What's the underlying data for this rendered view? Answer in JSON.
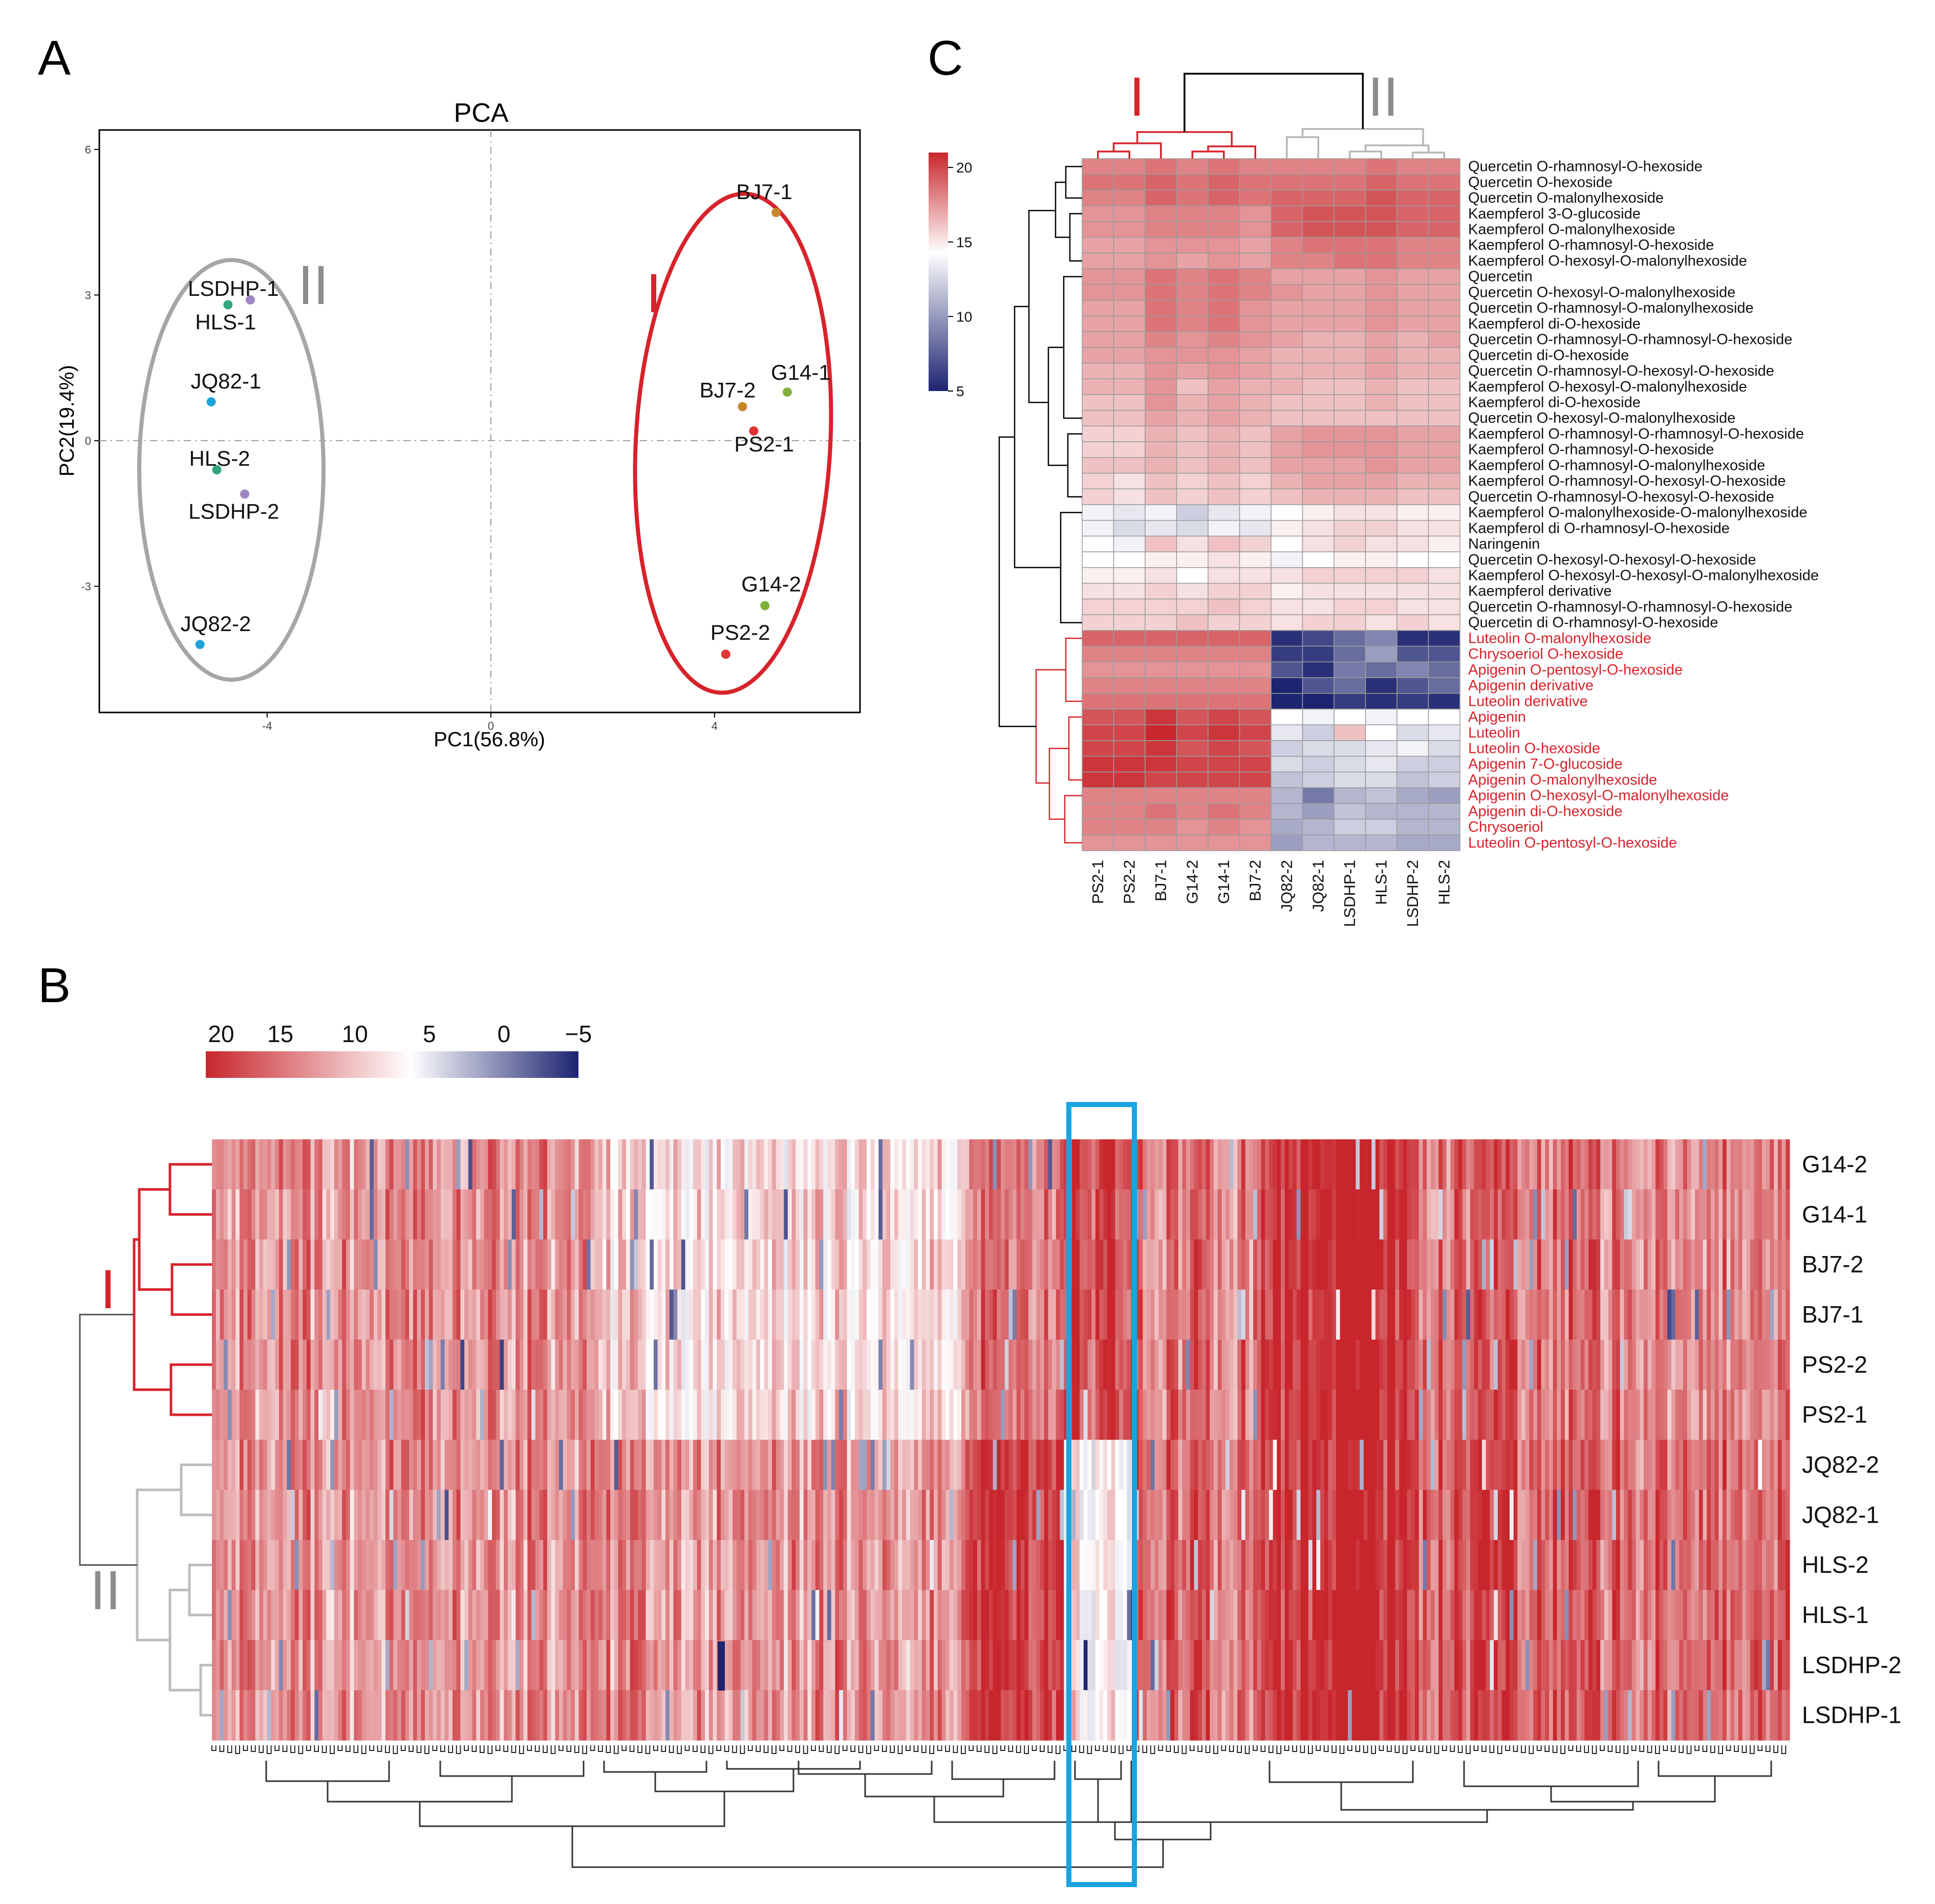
{
  "panels": {
    "A": "A",
    "B": "B",
    "C": "C"
  },
  "colors": {
    "high": "#c8262c",
    "mid": "#ffffff",
    "low": "#1d2470",
    "group1": "#d7232b",
    "group2": "#a6a6a6",
    "highlight": "#1ba3e0",
    "sample_colors": {
      "BJ7": "#c8862a",
      "G14": "#7fb13a",
      "PS2": "#e13234",
      "LSDHP": "#9d86c2",
      "HLS": "#2fa77b",
      "JQ82": "#1fa4d9"
    }
  },
  "chart_data": [
    {
      "id": "pca",
      "type": "scatter",
      "title": "PCA",
      "xlabel": "PC1(56.8%)",
      "ylabel": "PC2(19.4%)",
      "xlim": [
        -7.0,
        6.6
      ],
      "ylim": [
        -5.6,
        6.4
      ],
      "xticks": [
        -4,
        0,
        4
      ],
      "xtick_labels": [
        "-4",
        "0",
        "4"
      ],
      "yticks": [
        -3,
        0,
        3,
        6
      ],
      "ytick_labels": [
        "-3",
        "0",
        "3",
        "6"
      ],
      "points": [
        {
          "label": "BJ7-1",
          "group": "BJ7",
          "x": 5.1,
          "y": 4.7
        },
        {
          "label": "BJ7-2",
          "group": "BJ7",
          "x": 4.5,
          "y": 0.7
        },
        {
          "label": "G14-1",
          "group": "G14",
          "x": 5.3,
          "y": 1.0
        },
        {
          "label": "PS2-1",
          "group": "PS2",
          "x": 4.7,
          "y": 0.2
        },
        {
          "label": "G14-2",
          "group": "G14",
          "x": 4.9,
          "y": -3.4
        },
        {
          "label": "PS2-2",
          "group": "PS2",
          "x": 4.2,
          "y": -4.4
        },
        {
          "label": "LSDHP-1",
          "group": "LSDHP",
          "x": -4.3,
          "y": 2.9
        },
        {
          "label": "HLS-1",
          "group": "HLS",
          "x": -4.7,
          "y": 2.8
        },
        {
          "label": "JQ82-1",
          "group": "JQ82",
          "x": -5.0,
          "y": 0.8
        },
        {
          "label": "HLS-2",
          "group": "HLS",
          "x": -4.9,
          "y": -0.6
        },
        {
          "label": "LSDHP-2",
          "group": "LSDHP",
          "x": -4.4,
          "y": -1.1
        },
        {
          "label": "JQ82-2",
          "group": "JQ82",
          "x": -5.2,
          "y": -4.2
        }
      ],
      "group_labels": [
        "I",
        "II"
      ]
    },
    {
      "id": "heatmap-b",
      "type": "heatmap",
      "scale_ticks": [
        20,
        15,
        10,
        5,
        0,
        -5
      ],
      "scale_tick_labels": [
        "20",
        "15",
        "10",
        "5",
        "0",
        "−5"
      ],
      "scale_range": [
        -5,
        20
      ],
      "rows": [
        "G14-2",
        "G14-1",
        "BJ7-2",
        "BJ7-1",
        "PS2-2",
        "PS2-1",
        "JQ82-2",
        "JQ82-1",
        "HLS-2",
        "HLS-1",
        "LSDHP-2",
        "LSDHP-1"
      ],
      "group_labels": [
        "I",
        "II"
      ],
      "n_columns": 400,
      "segments": [
        {
          "from": 0,
          "to": 0.24,
          "group1": 15.5,
          "group2": 15.5
        },
        {
          "from": 0.24,
          "to": 0.48,
          "group1": 12.5,
          "group2": 15.5
        },
        {
          "from": 0.48,
          "to": 0.54,
          "group1": 16.5,
          "group2": 19
        },
        {
          "from": 0.54,
          "to": 0.585,
          "group1": 19,
          "group2": 11.5
        },
        {
          "from": 0.585,
          "to": 0.665,
          "group1": 16.5,
          "group2": 17
        },
        {
          "from": 0.665,
          "to": 0.76,
          "group1": 20,
          "group2": 20
        },
        {
          "from": 0.76,
          "to": 1.0,
          "group1": 16.5,
          "group2": 17.5
        }
      ]
    },
    {
      "id": "heatmap-c",
      "type": "heatmap",
      "scale_ticks": [
        20,
        15,
        10,
        5
      ],
      "scale_tick_labels": [
        "20",
        "15",
        "10",
        "5"
      ],
      "scale_range": [
        5,
        21
      ],
      "group_labels": [
        "I",
        "II"
      ],
      "columns": [
        "PS2-1",
        "PS2-2",
        "BJ7-1",
        "G14-2",
        "G14-1",
        "BJ7-2",
        "JQ82-2",
        "JQ82-1",
        "LSDHP-1",
        "HLS-1",
        "LSDHP-2",
        "HLS-2"
      ],
      "rows": [
        {
          "name": "Quercetin O-rhamnosyl-O-hexoside",
          "red": false,
          "values": [
            18,
            18,
            18.5,
            18,
            18.5,
            18,
            18,
            18,
            18,
            18.5,
            18,
            18
          ]
        },
        {
          "name": "Quercetin O-hexoside",
          "red": false,
          "values": [
            18.5,
            18.5,
            19,
            18.5,
            19,
            18.5,
            18.5,
            18.5,
            18.5,
            19,
            18.5,
            18.5
          ]
        },
        {
          "name": "Quercetin O-malonylhexoside",
          "red": false,
          "values": [
            18,
            18,
            19,
            18.5,
            19,
            18.5,
            19,
            19,
            19,
            19.5,
            19,
            19
          ]
        },
        {
          "name": "Kaempferol 3-O-glucoside",
          "red": false,
          "values": [
            17.5,
            17.5,
            18,
            18,
            18,
            17.5,
            19,
            19.5,
            19.5,
            19.5,
            19,
            19
          ]
        },
        {
          "name": "Kaempferol O-malonylhexoside",
          "red": false,
          "values": [
            17.5,
            17.5,
            18,
            18,
            18,
            17.5,
            19,
            19.5,
            19.5,
            19.5,
            19,
            19
          ]
        },
        {
          "name": "Kaempferol O-rhamnosyl-O-hexoside",
          "red": false,
          "values": [
            17,
            17,
            17.5,
            17.5,
            17.5,
            17,
            18,
            18.5,
            18.5,
            18.5,
            18,
            18
          ]
        },
        {
          "name": "Kaempferol O-hexosyl-O-malonylhexoside",
          "red": false,
          "values": [
            17,
            17,
            17.5,
            17,
            17.5,
            17,
            18,
            18,
            18.5,
            18.5,
            18,
            18
          ]
        },
        {
          "name": "Quercetin",
          "red": false,
          "values": [
            17.5,
            17.5,
            18.5,
            18,
            18.5,
            18,
            17,
            17,
            17,
            17.5,
            17,
            17
          ]
        },
        {
          "name": "Quercetin O-hexosyl-O-malonylhexoside",
          "red": false,
          "values": [
            17.5,
            17.5,
            18.5,
            18,
            18.5,
            18,
            17.5,
            17,
            17,
            17.5,
            17,
            17
          ]
        },
        {
          "name": "Quercetin O-rhamnosyl-O-malonylhexoside",
          "red": false,
          "values": [
            17,
            17,
            18.5,
            18,
            18.5,
            17.5,
            17,
            17,
            17,
            17.5,
            17,
            17
          ]
        },
        {
          "name": "Kaempferol di-O-hexoside",
          "red": false,
          "values": [
            17,
            17,
            18.5,
            18,
            18.5,
            17.5,
            17,
            17,
            17,
            17.5,
            17,
            17
          ]
        },
        {
          "name": "Quercetin O-rhamnosyl-O-rhamnosyl-O-hexoside",
          "red": false,
          "values": [
            17,
            17,
            18,
            17.5,
            18,
            17.5,
            17,
            16.5,
            16.5,
            17,
            16.5,
            17
          ]
        },
        {
          "name": "Quercetin di-O-hexoside",
          "red": false,
          "values": [
            17,
            17,
            17.5,
            17.5,
            17.5,
            17,
            16.5,
            16.5,
            16.5,
            17,
            16.5,
            16.5
          ]
        },
        {
          "name": "Quercetin O-rhamnosyl-O-hexosyl-O-hexoside",
          "red": false,
          "values": [
            16.5,
            16.5,
            17.5,
            17,
            17.5,
            17,
            16.5,
            16.5,
            16.5,
            17,
            16.5,
            16.5
          ]
        },
        {
          "name": "Kaempferol O-hexosyl-O-malonylhexoside",
          "red": false,
          "values": [
            16.5,
            16.5,
            17.5,
            16,
            17,
            16.5,
            16.5,
            16,
            16,
            16.5,
            16,
            16
          ]
        },
        {
          "name": "Kaempferol di-O-hexoside",
          "red": false,
          "values": [
            16,
            16,
            17.5,
            16.5,
            17,
            16.5,
            16,
            16,
            16,
            16.5,
            16,
            16
          ]
        },
        {
          "name": "Quercetin O-hexosyl-O-malonylhexoside",
          "red": false,
          "values": [
            16,
            16,
            17,
            16.5,
            17,
            16.5,
            16,
            16,
            16,
            16,
            16,
            16
          ]
        },
        {
          "name": "Kaempferol O-rhamnosyl-O-rhamnosyl-O-hexoside",
          "red": false,
          "values": [
            15.5,
            15.5,
            16.5,
            16,
            16.5,
            16,
            17,
            17.5,
            17.5,
            17.5,
            17,
            17
          ]
        },
        {
          "name": "Kaempferol O-rhamnosyl-O-hexoside",
          "red": false,
          "values": [
            15.5,
            15.5,
            16.5,
            16,
            16.5,
            16,
            17,
            17.5,
            17.5,
            17.5,
            17,
            17
          ]
        },
        {
          "name": "Kaempferol O-rhamnosyl-O-malonylhexoside",
          "red": false,
          "values": [
            16,
            16,
            16.5,
            16,
            16.5,
            16,
            17,
            17,
            17,
            17.5,
            17,
            17
          ]
        },
        {
          "name": "Kaempferol O-rhamnosyl-O-hexosyl-O-hexoside",
          "red": false,
          "values": [
            15.5,
            15,
            16,
            15.5,
            16,
            15.5,
            16.5,
            17,
            17,
            17,
            16.5,
            16.5
          ]
        },
        {
          "name": "Quercetin O-rhamnosyl-O-hexosyl-O-hexoside",
          "red": false,
          "values": [
            15.5,
            15,
            16,
            15.5,
            16,
            15.5,
            16,
            16.5,
            16.5,
            16.5,
            16,
            16
          ]
        },
        {
          "name": "Kaempferol O-malonylhexoside-O-malonylhexoside",
          "red": false,
          "values": [
            13.5,
            13,
            13.5,
            12,
            13,
            13.5,
            14,
            14.5,
            15,
            15,
            14.5,
            14.5
          ]
        },
        {
          "name": "Kaempferol di O-rhamnosyl-O-hexoside",
          "red": false,
          "values": [
            13.5,
            12.5,
            13,
            12.5,
            13.5,
            13,
            14.5,
            15,
            15.5,
            15.5,
            15,
            15
          ]
        },
        {
          "name": "Naringenin",
          "red": false,
          "values": [
            14,
            13.5,
            16,
            15,
            16,
            15.5,
            14,
            15,
            15.5,
            15,
            15,
            14.5
          ]
        },
        {
          "name": "Quercetin O-hexosyl-O-hexosyl-O-hexoside",
          "red": false,
          "values": [
            14,
            14,
            14.5,
            14.5,
            15,
            14.5,
            13.5,
            14,
            14.5,
            14.5,
            14,
            14
          ]
        },
        {
          "name": "Kaempferol O-hexosyl-O-hexosyl-O-malonylhexoside",
          "red": false,
          "values": [
            14.5,
            14.5,
            15,
            14,
            15,
            15,
            15,
            15.5,
            15.5,
            15.5,
            15.5,
            15
          ]
        },
        {
          "name": "Kaempferol derivative",
          "red": false,
          "values": [
            15,
            15,
            15.5,
            15,
            15.5,
            15.5,
            14.5,
            15,
            15,
            15,
            15,
            15
          ]
        },
        {
          "name": "Quercetin O-rhamnosyl-O-rhamnosyl-O-hexoside",
          "red": false,
          "values": [
            15.5,
            15.5,
            15.5,
            15.5,
            16,
            15.5,
            15,
            15,
            15.5,
            15.5,
            15,
            15
          ]
        },
        {
          "name": "Quercetin di O-rhamnosyl-O-hexoside",
          "red": false,
          "values": [
            15.5,
            15.5,
            15.5,
            16,
            15.5,
            15.5,
            15,
            15.5,
            15.5,
            15,
            15.5,
            15
          ]
        },
        {
          "name": "Luteolin O-malonylhexoside",
          "red": true,
          "values": [
            19,
            19,
            19,
            19,
            19,
            19,
            5.5,
            6.5,
            8,
            9,
            5.5,
            5.5
          ]
        },
        {
          "name": "Chrysoeriol O-hexoside",
          "red": true,
          "values": [
            18,
            18,
            18,
            18,
            18,
            18,
            6,
            6,
            8,
            10,
            7,
            7
          ]
        },
        {
          "name": "Apigenin O-pentosyl-O-hexoside",
          "red": true,
          "values": [
            17.5,
            17.5,
            17.5,
            17.5,
            17.5,
            17.5,
            7,
            5.5,
            8.5,
            8,
            9,
            8
          ]
        },
        {
          "name": "Apigenin derivative",
          "red": true,
          "values": [
            18,
            18,
            18,
            18,
            18,
            18,
            5,
            7,
            8,
            5.5,
            7,
            8
          ]
        },
        {
          "name": "Luteolin derivative",
          "red": true,
          "values": [
            18.5,
            18.5,
            18.5,
            18.5,
            18.5,
            18.5,
            5,
            5,
            6,
            5.5,
            6,
            5.5
          ]
        },
        {
          "name": "Apigenin",
          "red": true,
          "values": [
            19.5,
            19.5,
            20.5,
            19.5,
            20,
            19.5,
            14,
            13.5,
            14,
            13.5,
            14,
            14
          ]
        },
        {
          "name": "Luteolin",
          "red": true,
          "values": [
            20,
            20,
            21,
            20,
            20.5,
            20,
            13,
            12,
            16,
            14,
            12.5,
            13
          ]
        },
        {
          "name": "Luteolin O-hexoside",
          "red": true,
          "values": [
            20,
            20,
            20.5,
            19.5,
            20,
            19.5,
            12,
            12.5,
            12.5,
            13,
            13.5,
            12.5
          ]
        },
        {
          "name": "Apigenin 7-O-glucoside",
          "red": true,
          "values": [
            20.5,
            20.5,
            20.5,
            20,
            20,
            20,
            12.5,
            12,
            12.5,
            13,
            12,
            12
          ]
        },
        {
          "name": "Apigenin O-malonylhexoside",
          "red": true,
          "values": [
            20.5,
            20.5,
            20,
            20,
            20,
            20,
            11.5,
            12,
            12.5,
            12.5,
            11.5,
            12
          ]
        },
        {
          "name": "Apigenin O-hexosyl-O-malonylhexoside",
          "red": true,
          "values": [
            18,
            18,
            18,
            18,
            18,
            18,
            11,
            8.5,
            11,
            11.5,
            10.5,
            10
          ]
        },
        {
          "name": "Apigenin di-O-hexoside",
          "red": true,
          "values": [
            18,
            18,
            18.5,
            18,
            18.5,
            18,
            11,
            10,
            11.5,
            11,
            11,
            11
          ]
        },
        {
          "name": "Chrysoeriol",
          "red": true,
          "values": [
            18,
            18,
            18,
            17.5,
            18,
            17.5,
            10.5,
            11,
            12,
            12,
            11,
            11
          ]
        },
        {
          "name": "Luteolin O-pentosyl-O-hexoside",
          "red": true,
          "values": [
            17.5,
            17.5,
            17.5,
            17.5,
            17.5,
            17.5,
            10,
            11,
            11,
            11,
            10.5,
            10.5
          ]
        }
      ]
    }
  ]
}
